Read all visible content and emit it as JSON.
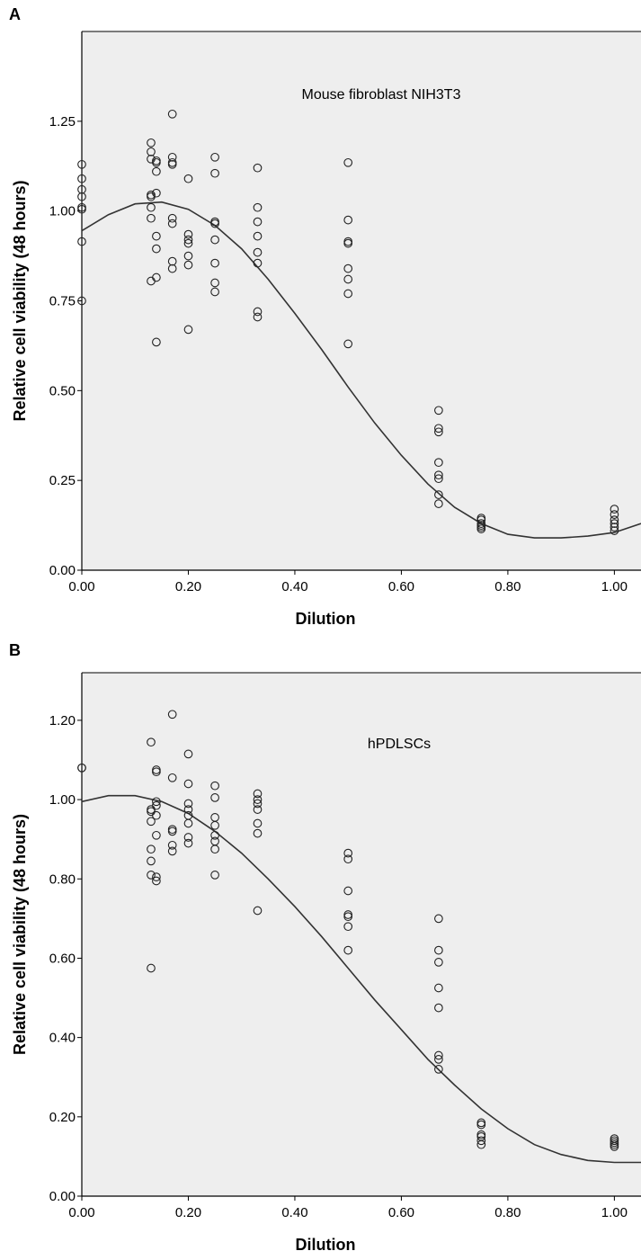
{
  "chart_data": [
    {
      "panel_label": "A",
      "type": "scatter",
      "annotation": "Mouse fibroblast NIH3T3",
      "xlabel": "Dilution",
      "ylabel": "Relative cell viability (48 hours)",
      "xlim": [
        0,
        1.05
      ],
      "ylim": [
        0,
        1.5
      ],
      "x_ticks": [
        "0.00",
        "0.20",
        "0.40",
        "0.60",
        "0.80",
        "1.00"
      ],
      "y_ticks": [
        "0.00",
        "0.25",
        "0.50",
        "0.75",
        "1.00",
        "1.25"
      ],
      "grid": false,
      "background": "#eeeeee",
      "points": [
        [
          0,
          1.13
        ],
        [
          0,
          1.09
        ],
        [
          0,
          1.06
        ],
        [
          0,
          1.04
        ],
        [
          0,
          1.01
        ],
        [
          0,
          1.005
        ],
        [
          0,
          0.915
        ],
        [
          0,
          0.75
        ],
        [
          0.13,
          1.19
        ],
        [
          0.13,
          1.165
        ],
        [
          0.13,
          1.145
        ],
        [
          0.13,
          1.045
        ],
        [
          0.13,
          1.04
        ],
        [
          0.13,
          1.01
        ],
        [
          0.13,
          0.98
        ],
        [
          0.13,
          0.805
        ],
        [
          0.14,
          1.14
        ],
        [
          0.14,
          1.135
        ],
        [
          0.14,
          1.11
        ],
        [
          0.14,
          1.05
        ],
        [
          0.14,
          0.93
        ],
        [
          0.14,
          0.895
        ],
        [
          0.14,
          0.815
        ],
        [
          0.14,
          0.635
        ],
        [
          0.17,
          1.27
        ],
        [
          0.17,
          1.15
        ],
        [
          0.17,
          1.135
        ],
        [
          0.17,
          1.13
        ],
        [
          0.17,
          0.98
        ],
        [
          0.17,
          0.965
        ],
        [
          0.17,
          0.86
        ],
        [
          0.17,
          0.84
        ],
        [
          0.2,
          1.09
        ],
        [
          0.2,
          0.935
        ],
        [
          0.2,
          0.92
        ],
        [
          0.2,
          0.91
        ],
        [
          0.2,
          0.875
        ],
        [
          0.2,
          0.85
        ],
        [
          0.2,
          0.67
        ],
        [
          0.25,
          1.15
        ],
        [
          0.25,
          1.105
        ],
        [
          0.25,
          0.97
        ],
        [
          0.25,
          0.965
        ],
        [
          0.25,
          0.92
        ],
        [
          0.25,
          0.855
        ],
        [
          0.25,
          0.8
        ],
        [
          0.25,
          0.775
        ],
        [
          0.33,
          1.12
        ],
        [
          0.33,
          1.01
        ],
        [
          0.33,
          0.97
        ],
        [
          0.33,
          0.93
        ],
        [
          0.33,
          0.885
        ],
        [
          0.33,
          0.855
        ],
        [
          0.33,
          0.72
        ],
        [
          0.33,
          0.705
        ],
        [
          0.5,
          1.135
        ],
        [
          0.5,
          0.975
        ],
        [
          0.5,
          0.915
        ],
        [
          0.5,
          0.91
        ],
        [
          0.5,
          0.84
        ],
        [
          0.5,
          0.81
        ],
        [
          0.5,
          0.77
        ],
        [
          0.5,
          0.63
        ],
        [
          0.67,
          0.445
        ],
        [
          0.67,
          0.395
        ],
        [
          0.67,
          0.385
        ],
        [
          0.67,
          0.3
        ],
        [
          0.67,
          0.265
        ],
        [
          0.67,
          0.255
        ],
        [
          0.67,
          0.21
        ],
        [
          0.67,
          0.185
        ],
        [
          0.75,
          0.145
        ],
        [
          0.75,
          0.14
        ],
        [
          0.75,
          0.13
        ],
        [
          0.75,
          0.125
        ],
        [
          0.75,
          0.12
        ],
        [
          0.75,
          0.115
        ],
        [
          1.0,
          0.17
        ],
        [
          1.0,
          0.155
        ],
        [
          1.0,
          0.14
        ],
        [
          1.0,
          0.13
        ],
        [
          1.0,
          0.12
        ],
        [
          1.0,
          0.11
        ]
      ],
      "fit_line": {
        "x": [
          0,
          0.05,
          0.1,
          0.15,
          0.2,
          0.25,
          0.3,
          0.35,
          0.4,
          0.45,
          0.5,
          0.55,
          0.6,
          0.65,
          0.7,
          0.75,
          0.8,
          0.85,
          0.9,
          0.95,
          1.0,
          1.05
        ],
        "y": [
          0.945,
          0.99,
          1.02,
          1.025,
          1.005,
          0.96,
          0.895,
          0.81,
          0.715,
          0.615,
          0.51,
          0.41,
          0.32,
          0.24,
          0.175,
          0.13,
          0.1,
          0.09,
          0.09,
          0.095,
          0.105,
          0.13
        ]
      }
    },
    {
      "panel_label": "B",
      "type": "scatter",
      "annotation": "hPDLSCs",
      "xlabel": "Dilution",
      "ylabel": "Relative cell viability (48 hours)",
      "xlim": [
        0,
        1.05
      ],
      "ylim": [
        0,
        1.32
      ],
      "x_ticks": [
        "0.00",
        "0.20",
        "0.40",
        "0.60",
        "0.80",
        "1.00"
      ],
      "y_ticks": [
        "0.00",
        "0.20",
        "0.40",
        "0.60",
        "0.80",
        "1.00",
        "1.20"
      ],
      "grid": false,
      "background": "#eeeeee",
      "points": [
        [
          0,
          1.08
        ],
        [
          0,
          1.08
        ],
        [
          0.13,
          1.145
        ],
        [
          0.13,
          0.975
        ],
        [
          0.13,
          0.97
        ],
        [
          0.13,
          0.945
        ],
        [
          0.13,
          0.875
        ],
        [
          0.13,
          0.845
        ],
        [
          0.13,
          0.81
        ],
        [
          0.13,
          0.575
        ],
        [
          0.14,
          1.075
        ],
        [
          0.14,
          1.07
        ],
        [
          0.14,
          0.995
        ],
        [
          0.14,
          0.985
        ],
        [
          0.14,
          0.96
        ],
        [
          0.14,
          0.91
        ],
        [
          0.14,
          0.805
        ],
        [
          0.14,
          0.795
        ],
        [
          0.17,
          1.215
        ],
        [
          0.17,
          1.055
        ],
        [
          0.17,
          0.925
        ],
        [
          0.17,
          0.92
        ],
        [
          0.17,
          0.885
        ],
        [
          0.17,
          0.87
        ],
        [
          0.2,
          1.115
        ],
        [
          0.2,
          1.04
        ],
        [
          0.2,
          0.99
        ],
        [
          0.2,
          0.975
        ],
        [
          0.2,
          0.96
        ],
        [
          0.2,
          0.94
        ],
        [
          0.2,
          0.905
        ],
        [
          0.2,
          0.89
        ],
        [
          0.25,
          1.035
        ],
        [
          0.25,
          1.005
        ],
        [
          0.25,
          0.955
        ],
        [
          0.25,
          0.935
        ],
        [
          0.25,
          0.91
        ],
        [
          0.25,
          0.895
        ],
        [
          0.25,
          0.875
        ],
        [
          0.25,
          0.81
        ],
        [
          0.33,
          1.015
        ],
        [
          0.33,
          1.0
        ],
        [
          0.33,
          0.99
        ],
        [
          0.33,
          0.975
        ],
        [
          0.33,
          0.94
        ],
        [
          0.33,
          0.915
        ],
        [
          0.33,
          0.72
        ],
        [
          0.5,
          0.865
        ],
        [
          0.5,
          0.85
        ],
        [
          0.5,
          0.77
        ],
        [
          0.5,
          0.71
        ],
        [
          0.5,
          0.705
        ],
        [
          0.5,
          0.68
        ],
        [
          0.5,
          0.62
        ],
        [
          0.67,
          0.7
        ],
        [
          0.67,
          0.62
        ],
        [
          0.67,
          0.59
        ],
        [
          0.67,
          0.525
        ],
        [
          0.67,
          0.475
        ],
        [
          0.67,
          0.355
        ],
        [
          0.67,
          0.345
        ],
        [
          0.67,
          0.32
        ],
        [
          0.75,
          0.185
        ],
        [
          0.75,
          0.18
        ],
        [
          0.75,
          0.155
        ],
        [
          0.75,
          0.15
        ],
        [
          0.75,
          0.14
        ],
        [
          0.75,
          0.13
        ],
        [
          1.0,
          0.145
        ],
        [
          1.0,
          0.14
        ],
        [
          1.0,
          0.135
        ],
        [
          1.0,
          0.13
        ],
        [
          1.0,
          0.125
        ]
      ],
      "fit_line": {
        "x": [
          0,
          0.05,
          0.1,
          0.15,
          0.2,
          0.25,
          0.3,
          0.35,
          0.4,
          0.45,
          0.5,
          0.55,
          0.6,
          0.65,
          0.7,
          0.75,
          0.8,
          0.85,
          0.9,
          0.95,
          1.0,
          1.05
        ],
        "y": [
          0.995,
          1.01,
          1.01,
          0.995,
          0.965,
          0.92,
          0.865,
          0.8,
          0.73,
          0.655,
          0.575,
          0.495,
          0.42,
          0.345,
          0.28,
          0.22,
          0.17,
          0.13,
          0.105,
          0.09,
          0.085,
          0.085
        ]
      }
    }
  ]
}
